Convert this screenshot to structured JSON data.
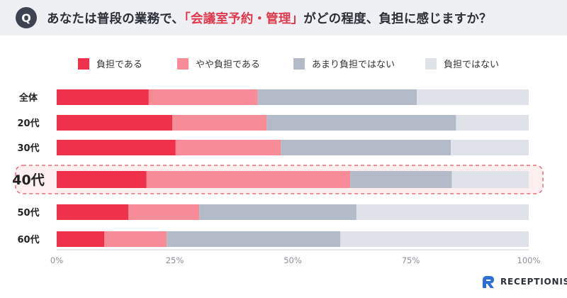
{
  "header": {
    "badge": "Q",
    "question_before": "あなたは普段の業務で、",
    "question_highlight": "「会議室予約・管理」",
    "question_after": "がどの程度、負担に感じますか？"
  },
  "colors": {
    "header_bg": "#eef0f3",
    "highlight": "#e03a4f",
    "highlight_box": "#e0707e",
    "highlight_fill": "#fdeef0"
  },
  "chart_data": {
    "type": "bar",
    "orientation": "horizontal",
    "stacked": true,
    "normalized": true,
    "categories": [
      "全体",
      "20代",
      "30代",
      "40代",
      "50代",
      "60代"
    ],
    "highlighted_category": "40代",
    "series": [
      {
        "name": "負担である",
        "color": "#f0314c",
        "values": [
          19.5,
          24.5,
          25.2,
          19.0,
          15.2,
          10.1
        ]
      },
      {
        "name": "やや負担である",
        "color": "#f78b98",
        "values": [
          23.1,
          20.0,
          22.3,
          43.2,
          15.0,
          13.2
        ]
      },
      {
        "name": "あまり負担ではない",
        "color": "#b3bbc9",
        "values": [
          33.7,
          40.1,
          36.0,
          21.5,
          33.3,
          36.8
        ]
      },
      {
        "name": "負担ではない",
        "color": "#dfe2e8",
        "values": [
          23.7,
          15.4,
          16.5,
          16.3,
          36.5,
          39.9
        ]
      }
    ],
    "xlim": [
      0,
      100
    ],
    "xticks": [
      "0%",
      "25%",
      "50%",
      "75%",
      "100%"
    ],
    "legend_position": "top",
    "grid": false
  },
  "branding": {
    "logo_text": "RECEPTIONIST"
  }
}
